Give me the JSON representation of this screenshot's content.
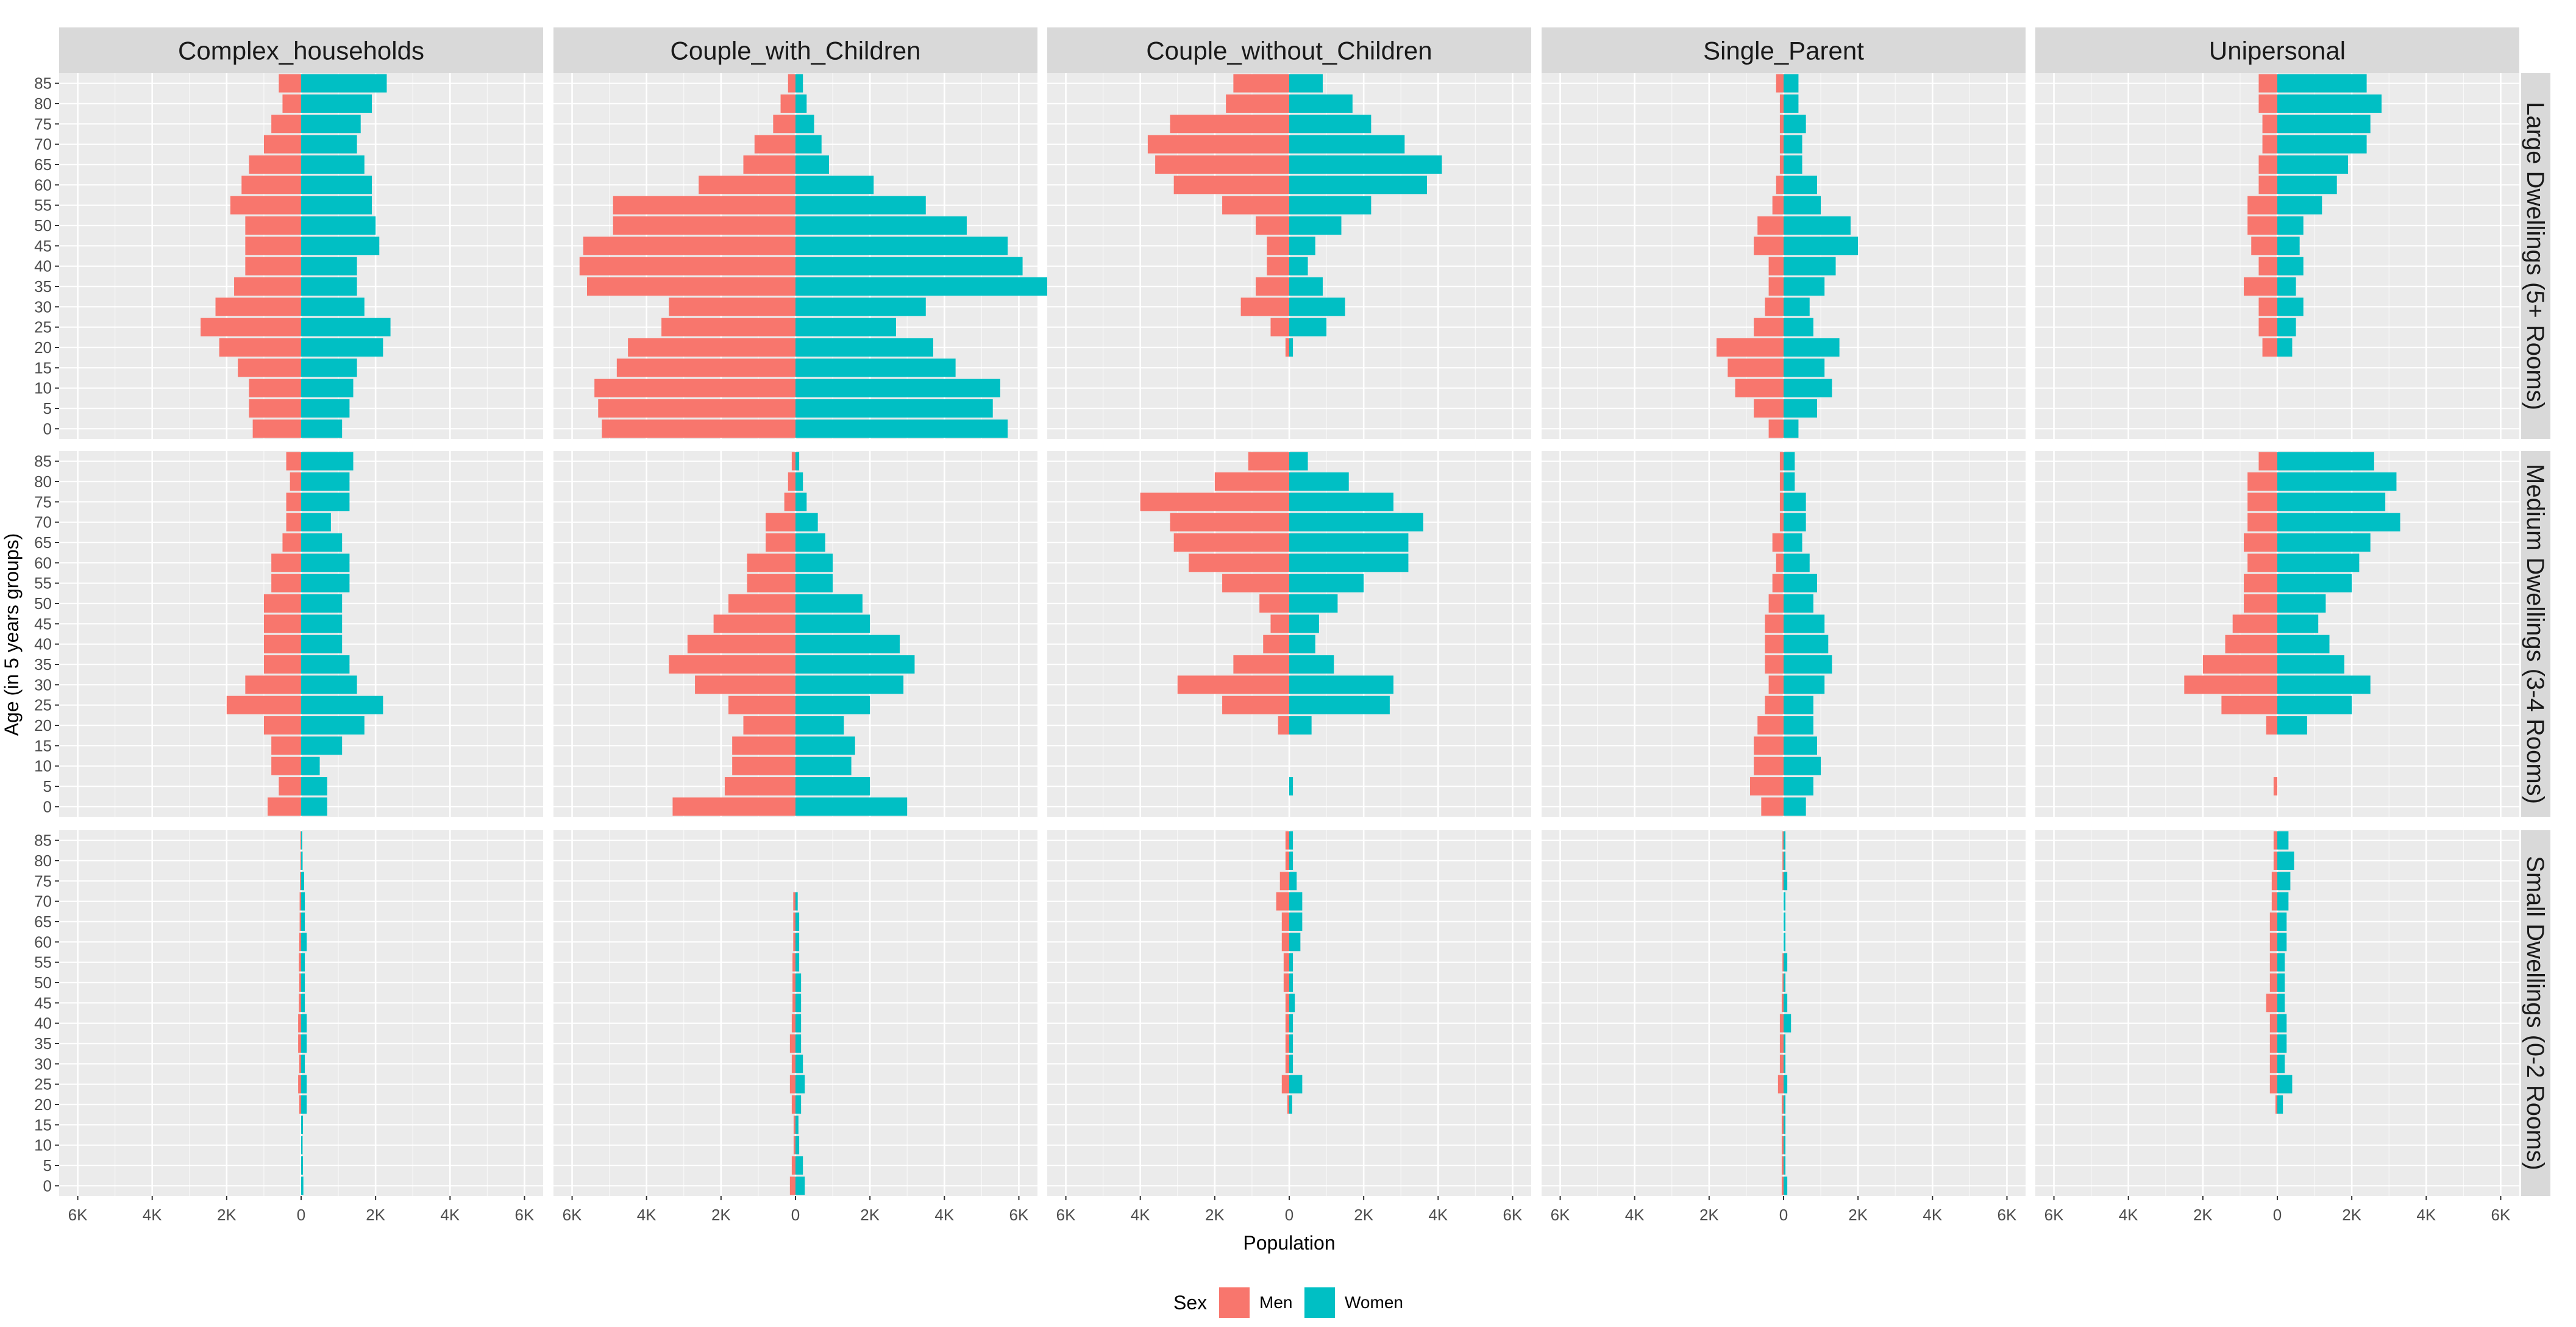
{
  "colors": {
    "men": "#F8766D",
    "women": "#00BFC4",
    "panel_bg": "#EBEBEB",
    "strip_bg": "#D9D9D9",
    "grid_major": "#FFFFFF"
  },
  "chart_data": {
    "type": "bar",
    "orientation": "horizontal",
    "subtype": "population-pyramid-facet-grid",
    "xlabel": "Population",
    "ylabel": "Age (in 5 years groups)",
    "xlim": [
      -6500,
      6500
    ],
    "x_ticks": [
      -6000,
      -4000,
      -2000,
      0,
      2000,
      4000,
      6000
    ],
    "x_tick_labels": [
      "6K",
      "4K",
      "2K",
      "0",
      "2K",
      "4K",
      "6K"
    ],
    "age_groups": [
      "0",
      "5",
      "10",
      "15",
      "20",
      "25",
      "30",
      "35",
      "40",
      "45",
      "50",
      "55",
      "60",
      "65",
      "70",
      "75",
      "80",
      "85"
    ],
    "facet_columns": [
      "Complex_households",
      "Couple_with_Children",
      "Couple_without_Children",
      "Single_Parent",
      "Unipersonal"
    ],
    "facet_rows": [
      "Large Dwellings (5+ Rooms)",
      "Medium Dwellings (3-4 Rooms)",
      "Small Dwellings (0-2 Rooms)"
    ],
    "legend": {
      "title": "Sex",
      "position": "bottom",
      "entries": [
        {
          "key": "men",
          "label": "Men"
        },
        {
          "key": "women",
          "label": "Women"
        }
      ]
    },
    "panels": [
      [
        {
          "men": [
            1300,
            1400,
            1400,
            1700,
            2200,
            2700,
            2300,
            1800,
            1500,
            1500,
            1500,
            1900,
            1600,
            1400,
            1000,
            800,
            500,
            600
          ],
          "women": [
            1100,
            1300,
            1400,
            1500,
            2200,
            2400,
            1700,
            1500,
            1500,
            2100,
            2000,
            1900,
            1900,
            1700,
            1500,
            1600,
            1900,
            2300
          ]
        },
        {
          "men": [
            5200,
            5300,
            5400,
            4800,
            4500,
            3600,
            3400,
            5600,
            5800,
            5700,
            4900,
            4900,
            2600,
            1400,
            1100,
            600,
            400,
            200
          ],
          "women": [
            5700,
            5300,
            5500,
            4300,
            3700,
            2700,
            3500,
            6800,
            6100,
            5700,
            4600,
            3500,
            2100,
            900,
            700,
            500,
            300,
            200
          ]
        },
        {
          "men": [
            0,
            0,
            0,
            0,
            100,
            500,
            1300,
            900,
            600,
            600,
            900,
            1800,
            3100,
            3600,
            3800,
            3200,
            1700,
            1500
          ],
          "women": [
            0,
            0,
            0,
            0,
            100,
            1000,
            1500,
            900,
            500,
            700,
            1400,
            2200,
            3700,
            4100,
            3100,
            2200,
            1700,
            900
          ]
        },
        {
          "men": [
            400,
            800,
            1300,
            1500,
            1800,
            800,
            500,
            400,
            400,
            800,
            700,
            300,
            200,
            100,
            100,
            100,
            100,
            200
          ],
          "women": [
            400,
            900,
            1300,
            1100,
            1500,
            800,
            700,
            1100,
            1400,
            2000,
            1800,
            1000,
            900,
            500,
            500,
            600,
            400,
            400
          ]
        },
        {
          "men": [
            0,
            0,
            0,
            0,
            400,
            500,
            500,
            900,
            500,
            700,
            800,
            800,
            500,
            500,
            400,
            400,
            500,
            500
          ],
          "women": [
            0,
            0,
            0,
            0,
            400,
            500,
            700,
            500,
            700,
            600,
            700,
            1200,
            1600,
            1900,
            2400,
            2500,
            2800,
            2400
          ]
        }
      ],
      [
        {
          "men": [
            900,
            600,
            800,
            800,
            1000,
            2000,
            1500,
            1000,
            1000,
            1000,
            1000,
            800,
            800,
            500,
            400,
            400,
            300,
            400
          ],
          "women": [
            700,
            700,
            500,
            1100,
            1700,
            2200,
            1500,
            1300,
            1100,
            1100,
            1100,
            1300,
            1300,
            1100,
            800,
            1300,
            1300,
            1400
          ]
        },
        {
          "men": [
            3300,
            1900,
            1700,
            1700,
            1400,
            1800,
            2700,
            3400,
            2900,
            2200,
            1800,
            1300,
            1300,
            800,
            800,
            300,
            200,
            100
          ],
          "women": [
            3000,
            2000,
            1500,
            1600,
            1300,
            2000,
            2900,
            3200,
            2800,
            2000,
            1800,
            1000,
            1000,
            800,
            600,
            300,
            200,
            100
          ]
        },
        {
          "men": [
            0,
            0,
            0,
            0,
            300,
            1800,
            3000,
            1500,
            700,
            500,
            800,
            1800,
            2700,
            3100,
            3200,
            4000,
            2000,
            1100
          ],
          "women": [
            0,
            100,
            0,
            0,
            600,
            2700,
            2800,
            1200,
            700,
            800,
            1300,
            2000,
            3200,
            3200,
            3600,
            2800,
            1600,
            500
          ]
        },
        {
          "men": [
            600,
            900,
            800,
            800,
            700,
            500,
            400,
            500,
            500,
            500,
            400,
            300,
            200,
            300,
            100,
            100,
            100,
            100
          ],
          "women": [
            600,
            800,
            1000,
            900,
            800,
            800,
            1100,
            1300,
            1200,
            1100,
            800,
            900,
            700,
            500,
            600,
            600,
            300,
            300
          ]
        },
        {
          "men": [
            0,
            100,
            0,
            0,
            300,
            1500,
            2500,
            2000,
            1400,
            1200,
            900,
            900,
            800,
            900,
            800,
            800,
            800,
            500
          ],
          "women": [
            0,
            0,
            0,
            0,
            800,
            2000,
            2500,
            1800,
            1400,
            1100,
            1300,
            2000,
            2200,
            2500,
            3300,
            2900,
            3200,
            2600
          ]
        }
      ],
      [
        {
          "men": [
            0,
            0,
            0,
            0,
            50,
            80,
            50,
            80,
            80,
            60,
            50,
            60,
            50,
            40,
            40,
            30,
            20,
            20
          ],
          "women": [
            60,
            50,
            40,
            50,
            150,
            150,
            100,
            150,
            150,
            100,
            100,
            100,
            150,
            100,
            100,
            80,
            40,
            30
          ]
        },
        {
          "men": [
            150,
            100,
            50,
            50,
            100,
            150,
            100,
            150,
            100,
            80,
            80,
            80,
            60,
            60,
            60,
            0,
            0,
            0
          ],
          "women": [
            250,
            200,
            100,
            80,
            150,
            250,
            200,
            150,
            150,
            150,
            150,
            100,
            100,
            100,
            60,
            0,
            0,
            0
          ]
        },
        {
          "men": [
            0,
            0,
            0,
            0,
            50,
            200,
            100,
            100,
            100,
            100,
            150,
            150,
            200,
            200,
            350,
            250,
            100,
            100
          ],
          "women": [
            0,
            0,
            0,
            0,
            80,
            350,
            100,
            100,
            100,
            150,
            100,
            100,
            300,
            350,
            350,
            200,
            100,
            100
          ]
        },
        {
          "men": [
            50,
            50,
            50,
            50,
            50,
            150,
            100,
            100,
            100,
            50,
            30,
            30,
            0,
            0,
            0,
            30,
            30,
            30
          ],
          "women": [
            100,
            50,
            50,
            50,
            50,
            100,
            50,
            50,
            200,
            100,
            50,
            100,
            50,
            50,
            50,
            100,
            50,
            50
          ]
        },
        {
          "men": [
            0,
            0,
            0,
            0,
            50,
            200,
            200,
            200,
            200,
            300,
            200,
            200,
            200,
            200,
            150,
            150,
            100,
            100
          ],
          "women": [
            0,
            0,
            0,
            0,
            150,
            400,
            200,
            250,
            250,
            200,
            200,
            200,
            250,
            250,
            300,
            350,
            450,
            300
          ]
        }
      ]
    ]
  }
}
